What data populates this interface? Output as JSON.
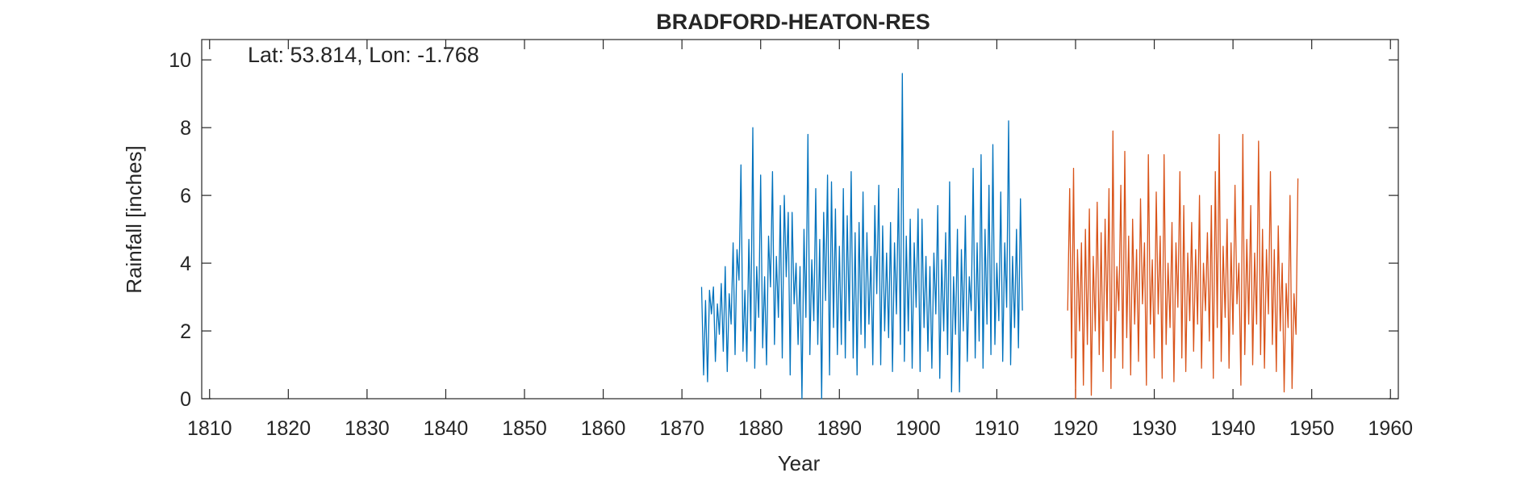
{
  "chart_data": {
    "type": "line",
    "title": "BRADFORD-HEATON-RES",
    "annotation": "Lat: 53.814, Lon: -1.768",
    "xlabel": "Year",
    "ylabel": "Rainfall [inches]",
    "xlim": [
      1809,
      1961
    ],
    "ylim": [
      0,
      10.6
    ],
    "xticks": [
      1810,
      1820,
      1830,
      1840,
      1850,
      1860,
      1870,
      1880,
      1890,
      1900,
      1910,
      1920,
      1930,
      1940,
      1950,
      1960
    ],
    "yticks": [
      0,
      2,
      4,
      6,
      8,
      10
    ],
    "grid": false,
    "series": [
      {
        "color": "#0072BD",
        "x_start": 1872.5,
        "step": 0.25,
        "values": [
          3.3,
          0.7,
          2.9,
          0.5,
          3.2,
          2.5,
          3.3,
          1.1,
          2.8,
          1.9,
          3.4,
          1.4,
          3.9,
          0.8,
          3.1,
          2.2,
          4.6,
          1.3,
          4.4,
          3.5,
          6.9,
          1.4,
          3.2,
          1.1,
          4.7,
          2.0,
          8.0,
          0.9,
          3.9,
          2.4,
          6.6,
          1.5,
          3.6,
          1.0,
          4.8,
          3.3,
          6.7,
          1.6,
          4.2,
          2.4,
          5.7,
          1.2,
          6.0,
          3.6,
          5.5,
          0.7,
          5.5,
          2.8,
          4.0,
          1.6,
          3.9,
          0.0,
          5.0,
          2.4,
          7.8,
          1.3,
          4.1,
          2.3,
          6.2,
          1.6,
          4.7,
          0.0,
          5.5,
          2.9,
          6.6,
          0.7,
          6.4,
          2.1,
          5.6,
          1.3,
          4.5,
          1.6,
          6.2,
          1.2,
          5.4,
          2.3,
          6.7,
          1.2,
          4.9,
          0.7,
          5.2,
          1.9,
          6.1,
          1.5,
          4.9,
          2.2,
          4.2,
          1.0,
          5.7,
          3.1,
          6.3,
          1.0,
          5.1,
          2.0,
          4.3,
          1.8,
          5.2,
          0.8,
          4.6,
          2.5,
          6.2,
          1.6,
          9.6,
          1.1,
          4.8,
          2.0,
          5.3,
          0.9,
          4.6,
          2.7,
          5.6,
          0.8,
          5.3,
          2.1,
          4.2,
          1.4,
          3.9,
          0.9,
          4.3,
          2.5,
          5.7,
          0.6,
          4.1,
          2.0,
          4.9,
          1.3,
          6.4,
          0.2,
          3.6,
          1.9,
          5.0,
          0.2,
          4.4,
          2.0,
          5.4,
          1.1,
          3.6,
          2.6,
          6.8,
          1.2,
          4.6,
          1.7,
          7.2,
          0.9,
          5.0,
          2.2,
          6.3,
          1.3,
          7.5,
          1.6,
          4.0,
          2.3,
          6.1,
          1.1,
          4.6,
          2.7,
          8.2,
          1.0,
          4.2,
          2.1,
          5.0,
          1.5,
          5.9,
          2.6
        ]
      },
      {
        "color": "#D95319",
        "x_start": 1919.0,
        "step": 0.25,
        "values": [
          2.6,
          6.2,
          1.2,
          6.8,
          0.0,
          4.4,
          2.0,
          4.6,
          0.4,
          5.0,
          1.6,
          5.6,
          0.1,
          4.2,
          2.0,
          5.8,
          1.3,
          4.9,
          0.8,
          5.3,
          2.3,
          6.2,
          0.3,
          7.9,
          1.2,
          3.9,
          2.6,
          6.3,
          0.9,
          7.3,
          1.8,
          4.8,
          0.7,
          5.3,
          2.2,
          4.4,
          1.1,
          5.9,
          2.8,
          4.6,
          0.4,
          7.2,
          2.2,
          4.1,
          1.2,
          6.1,
          2.5,
          4.8,
          0.6,
          7.2,
          1.6,
          4.0,
          2.1,
          5.2,
          0.5,
          4.6,
          2.7,
          6.7,
          1.2,
          5.7,
          0.8,
          4.3,
          2.3,
          5.2,
          1.4,
          4.4,
          2.2,
          6.0,
          0.9,
          4.0,
          2.6,
          4.9,
          1.7,
          5.7,
          0.6,
          6.7,
          2.1,
          7.8,
          1.1,
          4.5,
          2.4,
          5.3,
          0.9,
          4.6,
          1.9,
          6.3,
          2.8,
          4.0,
          0.4,
          7.8,
          1.3,
          4.7,
          2.2,
          5.7,
          1.0,
          4.3,
          2.2,
          7.6,
          1.3,
          5.0,
          0.9,
          4.4,
          2.5,
          6.7,
          1.6,
          4.4,
          0.8,
          5.1,
          2.0,
          4.0,
          0.2,
          3.4,
          2.1,
          6.0,
          0.3,
          3.1,
          1.9,
          6.5
        ]
      }
    ]
  }
}
